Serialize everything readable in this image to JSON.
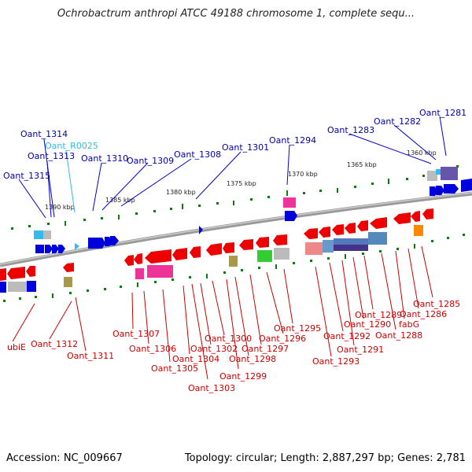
{
  "title": "Ochrobactrum anthropi ATCC 49188 chromosome 1, complete sequ...",
  "accession": "Accession: NC_009667",
  "topology": "Topology: circular; Length: 2,887,297 bp; Genes: 2,781",
  "ticks": [
    "1390 kbp",
    "1385 kbp",
    "1380 kbp",
    "1375 kbp",
    "1370 kbp",
    "1365 kbp",
    "1360 kbp"
  ],
  "top_labels": [
    "Oant_1314",
    "Oant_R0025",
    "Oant_1313",
    "Oant_1315",
    "Oant_1310",
    "Oant_1309",
    "Oant_1308",
    "Oant_1301",
    "Oant_1294",
    "Oant_1283",
    "Oant_1282",
    "Oant_1281"
  ],
  "bottom_labels": [
    "ubiE",
    "Oant_1312",
    "Oant_1311",
    "Oant_1307",
    "Oant_1306",
    "Oant_1305",
    "Oant_1304",
    "Oant_1303",
    "Oant_1302",
    "Oant_1300",
    "Oant_1299",
    "Oant_1298",
    "Oant_1297",
    "Oant_1296",
    "Oant_1295",
    "Oant_1293",
    "Oant_1292",
    "Oant_1291",
    "Oant_1290",
    "Oant_1289",
    "Oant_1288",
    "fabG",
    "Oant_1286",
    "Oant_1285"
  ],
  "colors": {
    "forward": "#0000dd",
    "reverse": "#ee0000",
    "rna": "#33bbee",
    "backbone": "#888888",
    "tick": "#117711",
    "top_label": "#0000aa",
    "rna_label": "#33bbdd",
    "bottom_label": "#cc0000"
  }
}
